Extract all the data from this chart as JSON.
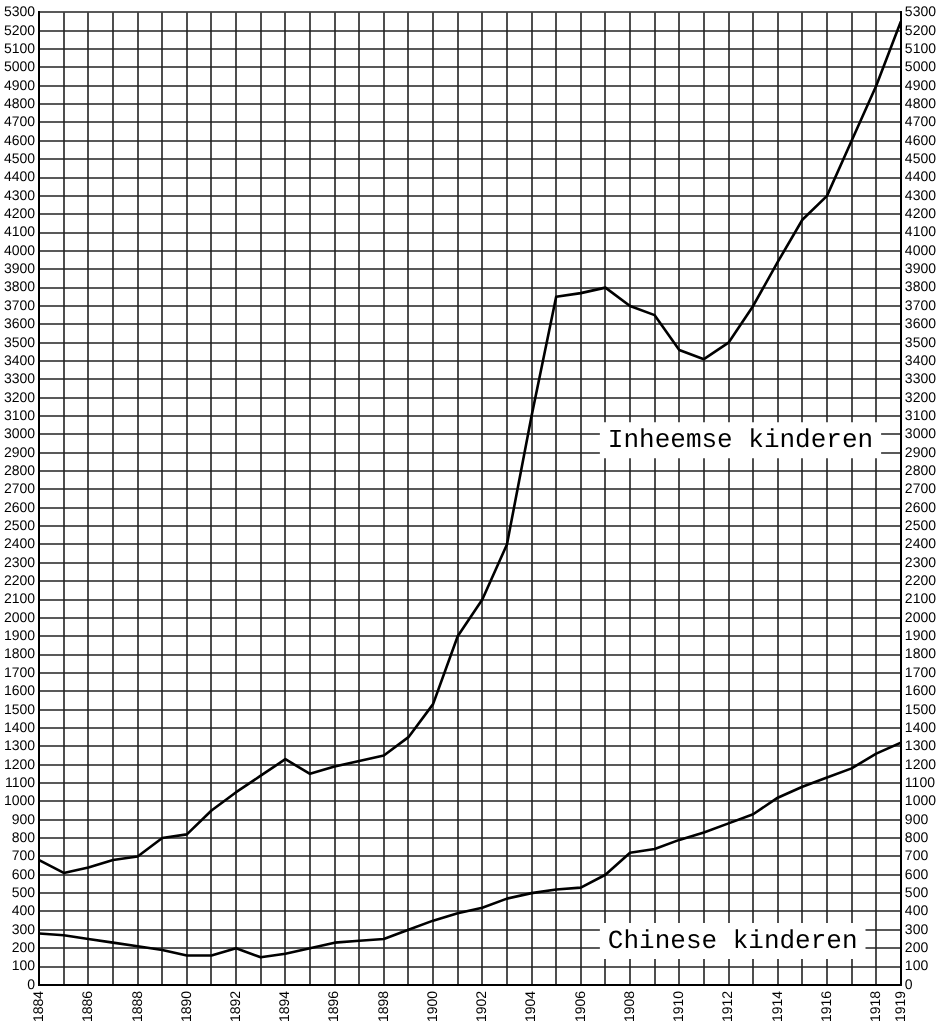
{
  "chart_data": {
    "type": "line",
    "x": [
      1884,
      1885,
      1886,
      1887,
      1888,
      1889,
      1890,
      1891,
      1892,
      1893,
      1894,
      1895,
      1896,
      1897,
      1898,
      1899,
      1900,
      1901,
      1902,
      1903,
      1904,
      1905,
      1906,
      1907,
      1908,
      1909,
      1910,
      1911,
      1912,
      1913,
      1914,
      1915,
      1916,
      1917,
      1918,
      1919
    ],
    "series": [
      {
        "name": "Inheemse kinderen",
        "color": "#000000",
        "values": [
          680,
          610,
          640,
          680,
          700,
          800,
          820,
          950,
          1050,
          1140,
          1230,
          1150,
          1190,
          1220,
          1250,
          1350,
          1530,
          1900,
          2100,
          2400,
          3100,
          3750,
          3770,
          3800,
          3700,
          3650,
          3460,
          3410,
          3500,
          3700,
          3940,
          4170,
          4300,
          4600,
          4900,
          5250
        ]
      },
      {
        "name": "Chinese kinderen",
        "color": "#000000",
        "values": [
          280,
          270,
          250,
          230,
          210,
          190,
          160,
          160,
          200,
          150,
          170,
          200,
          230,
          240,
          250,
          300,
          350,
          390,
          420,
          470,
          500,
          520,
          530,
          600,
          720,
          740,
          790,
          830,
          880,
          930,
          1020,
          1080,
          1130,
          1180,
          1260,
          1320
        ]
      }
    ],
    "xlim": [
      1884,
      1919
    ],
    "xticks": [
      1884,
      {
        "value": 1885,
        "label": null
      },
      1886,
      {
        "value": 1887,
        "label": null
      },
      1888,
      {
        "value": 1889,
        "label": null
      },
      1890,
      {
        "value": 1891,
        "label": null
      },
      1892,
      {
        "value": 1893,
        "label": null
      },
      1894,
      {
        "value": 1895,
        "label": null
      },
      1896,
      {
        "value": 1897,
        "label": null
      },
      1898,
      {
        "value": 1899,
        "label": null
      },
      1900,
      {
        "value": 1901,
        "label": null
      },
      1902,
      {
        "value": 1903,
        "label": null
      },
      1904,
      {
        "value": 1905,
        "label": null
      },
      1906,
      {
        "value": 1907,
        "label": null
      },
      1908,
      {
        "value": 1909,
        "label": null
      },
      1910,
      {
        "value": 1911,
        "label": null
      },
      1912,
      {
        "value": 1913,
        "label": null
      },
      1914,
      {
        "value": 1915,
        "label": null
      },
      1916,
      {
        "value": 1917,
        "label": null
      },
      1918,
      1919
    ],
    "ylim": [
      0,
      5300
    ],
    "yticks": [
      0,
      100,
      200,
      300,
      400,
      500,
      600,
      700,
      800,
      900,
      1000,
      1100,
      1200,
      1300,
      1400,
      1500,
      1600,
      1700,
      1800,
      1900,
      2000,
      2100,
      2200,
      2300,
      2400,
      2500,
      2600,
      2700,
      2800,
      2900,
      3000,
      3100,
      3200,
      3300,
      3400,
      3500,
      3600,
      3700,
      3800,
      3900,
      4000,
      4100,
      4200,
      4300,
      4400,
      4500,
      4600,
      4700,
      4800,
      4900,
      5000,
      5100,
      5200,
      5300
    ],
    "y2lim": [
      0,
      5300
    ],
    "y2ticks": [
      0,
      100,
      200,
      300,
      400,
      500,
      600,
      700,
      800,
      900,
      1000,
      1100,
      1200,
      1300,
      1400,
      1500,
      1600,
      1700,
      1800,
      1900,
      2000,
      2100,
      2200,
      2300,
      2400,
      2500,
      2600,
      2700,
      2800,
      2900,
      3000,
      3100,
      3200,
      3300,
      3400,
      3500,
      3600,
      3700,
      3800,
      3900,
      4000,
      4100,
      4200,
      4300,
      4400,
      4500,
      4600,
      4700,
      4800,
      4900,
      5000,
      5100,
      5200,
      5300
    ],
    "grid": true,
    "legend": false,
    "marker": "none",
    "line_style": "solid"
  }
}
